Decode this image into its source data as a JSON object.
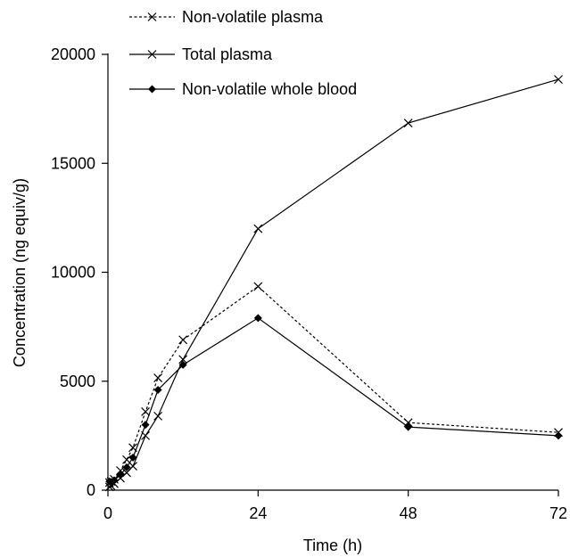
{
  "chart_data": {
    "type": "line",
    "title": "",
    "xlabel": "Time (h)",
    "ylabel": "Concentration (ng equiv/g)",
    "xlim": [
      0,
      72
    ],
    "ylim": [
      0,
      20000
    ],
    "x_ticks": [
      0,
      24,
      48,
      72
    ],
    "y_ticks": [
      0,
      5000,
      10000,
      15000,
      20000
    ],
    "x_tick_labels": [
      "0",
      "24",
      "48",
      "72"
    ],
    "y_tick_labels": [
      "0",
      "5000",
      "10000",
      "15000",
      "20000"
    ],
    "grid": false,
    "legend_position": "top-left",
    "series": [
      {
        "name": "Non-volatile plasma",
        "line_style": "dotted",
        "marker": "x",
        "color": "#000000",
        "x": [
          0.25,
          0.5,
          1,
          2,
          3,
          4,
          6,
          8,
          12,
          24,
          48,
          72
        ],
        "y": [
          350,
          400,
          500,
          900,
          1400,
          1950,
          3600,
          5150,
          6900,
          9350,
          3100,
          2650
        ]
      },
      {
        "name": "Total plasma",
        "line_style": "solid",
        "marker": "x",
        "color": "#000000",
        "x": [
          0.25,
          0.5,
          1,
          2,
          3,
          4,
          6,
          8,
          12,
          24,
          48,
          72
        ],
        "y": [
          150,
          200,
          300,
          550,
          800,
          1100,
          2500,
          3400,
          6000,
          12000,
          16850,
          18850
        ]
      },
      {
        "name": "Non-volatile whole blood",
        "line_style": "solid",
        "marker": "diamond",
        "color": "#000000",
        "x": [
          0.25,
          0.5,
          1,
          2,
          3,
          4,
          6,
          8,
          12,
          24,
          48,
          72
        ],
        "y": [
          400,
          380,
          450,
          700,
          1050,
          1500,
          3000,
          4600,
          5750,
          7900,
          2900,
          2500
        ]
      }
    ]
  }
}
